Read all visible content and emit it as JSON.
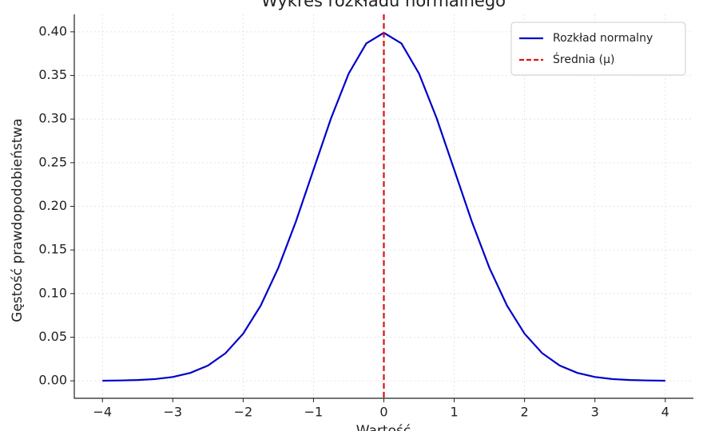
{
  "chart_data": {
    "type": "line",
    "title": "Wykres rozkładu normalnego",
    "xlabel": "Wartość",
    "ylabel": "Gęstość prawdopodobieństwa",
    "x": [
      -4,
      -3.75,
      -3.5,
      -3.25,
      -3,
      -2.75,
      -2.5,
      -2.25,
      -2,
      -1.75,
      -1.5,
      -1.25,
      -1,
      -0.75,
      -0.5,
      -0.25,
      0,
      0.25,
      0.5,
      0.75,
      1,
      1.25,
      1.5,
      1.75,
      2,
      2.25,
      2.5,
      2.75,
      3,
      3.25,
      3.5,
      3.75,
      4
    ],
    "series": [
      {
        "name": "Rozkład normalny",
        "color": "#0000cc",
        "values": [
          0.0001,
          0.0004,
          0.0009,
          0.002,
          0.0044,
          0.0091,
          0.0175,
          0.0317,
          0.054,
          0.0863,
          0.1295,
          0.1826,
          0.242,
          0.3011,
          0.3521,
          0.3867,
          0.3989,
          0.3867,
          0.3521,
          0.3011,
          0.242,
          0.1826,
          0.1295,
          0.0863,
          0.054,
          0.0317,
          0.0175,
          0.0091,
          0.0044,
          0.002,
          0.0009,
          0.0004,
          0.0001
        ]
      }
    ],
    "vlines": [
      {
        "name": "Średnia (μ)",
        "x": 0,
        "color": "#dd1111",
        "dashed": true
      }
    ],
    "xlim": [
      -4.4,
      4.4
    ],
    "ylim": [
      -0.02,
      0.42
    ],
    "xticks": [
      {
        "value": -4,
        "label": "−4"
      },
      {
        "value": -3,
        "label": "−3"
      },
      {
        "value": -2,
        "label": "−2"
      },
      {
        "value": -1,
        "label": "−1"
      },
      0,
      1,
      2,
      3,
      4
    ],
    "yticks": [
      {
        "value": 0,
        "label": "0.00"
      },
      0.05,
      {
        "value": 0.1,
        "label": "0.10"
      },
      0.15,
      {
        "value": 0.2,
        "label": "0.20"
      },
      0.25,
      {
        "value": 0.3,
        "label": "0.30"
      },
      0.35,
      {
        "value": 0.4,
        "label": "0.40"
      }
    ],
    "grid": true,
    "legend": "upper right"
  }
}
